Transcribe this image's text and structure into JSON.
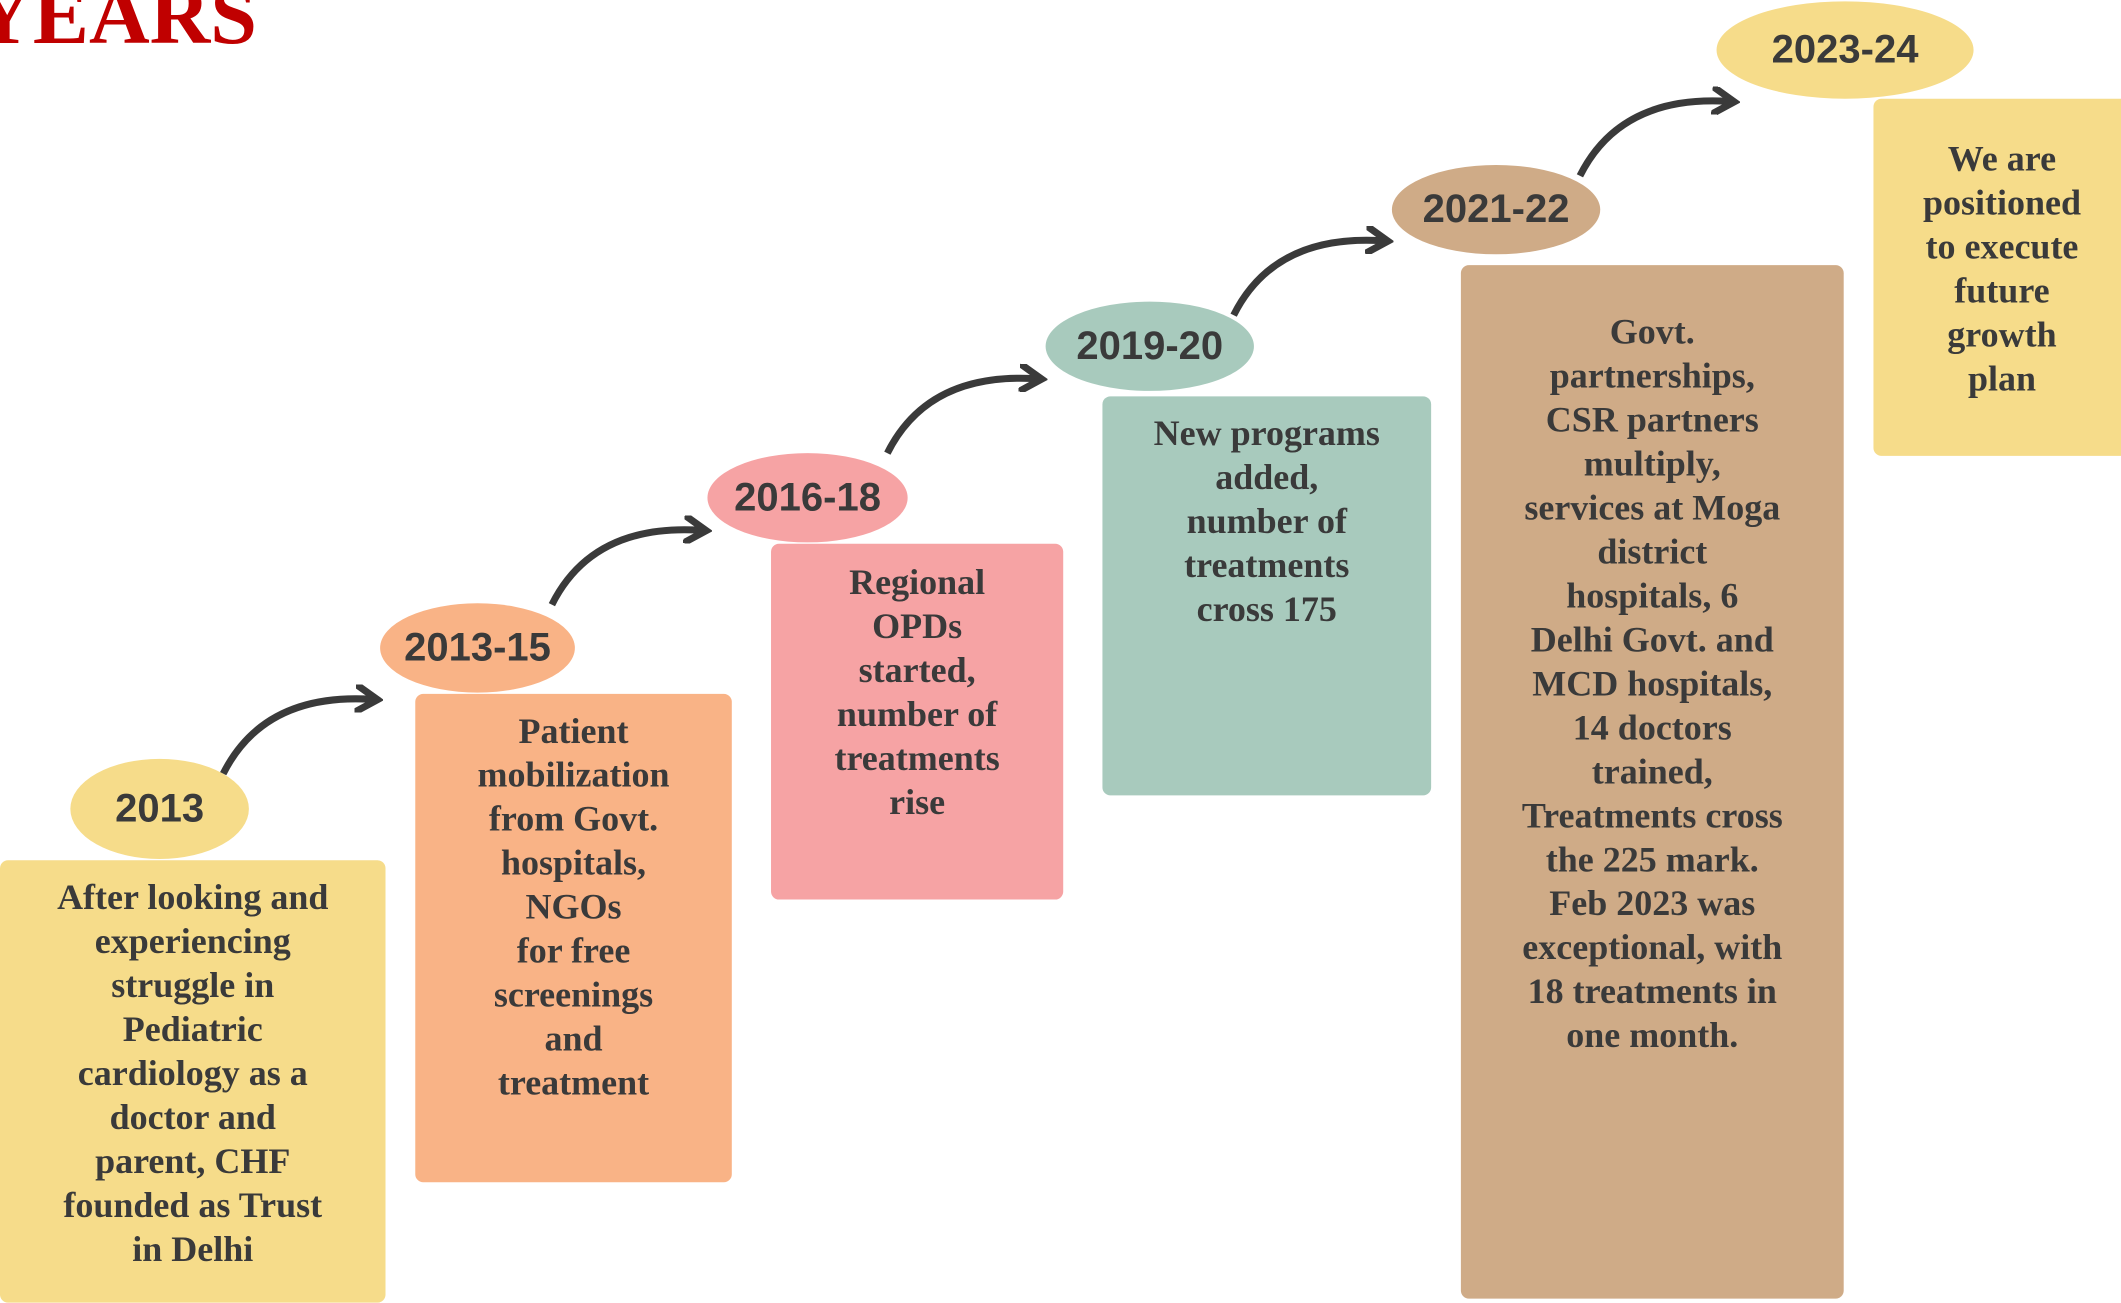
{
  "header": {
    "title": "YEARS"
  },
  "steps": [
    {
      "year": "2013",
      "lines": [
        "After looking and",
        "experiencing",
        "struggle in",
        "Pediatric",
        "cardiology as a",
        "doctor and",
        "parent, CHF",
        "founded as Trust",
        "in Delhi"
      ]
    },
    {
      "year": "2013-15",
      "lines": [
        "Patient",
        "mobilization",
        "from Govt.",
        "hospitals,",
        "NGOs",
        "for free",
        "screenings",
        "and",
        "treatment"
      ]
    },
    {
      "year": "2016-18",
      "lines": [
        "Regional",
        "OPDs",
        "started,",
        "number of",
        "treatments",
        "rise"
      ]
    },
    {
      "year": "2019-20",
      "lines": [
        "New programs",
        "added,",
        "number of",
        "treatments",
        "cross 175"
      ]
    },
    {
      "year": "2021-22",
      "lines": [
        "Govt.",
        "partnerships,",
        "CSR partners",
        "multiply,",
        "services at Moga",
        "district",
        "hospitals, 6",
        "Delhi Govt. and",
        "MCD hospitals,",
        "14 doctors",
        "trained,",
        "Treatments cross",
        "the 225 mark.",
        "Feb 2023 was",
        "exceptional, with",
        "18 treatments in",
        "one month."
      ]
    },
    {
      "year": "2023-24",
      "lines": [
        "We are",
        "positioned",
        "to execute",
        "future",
        "growth",
        "plan"
      ]
    }
  ]
}
